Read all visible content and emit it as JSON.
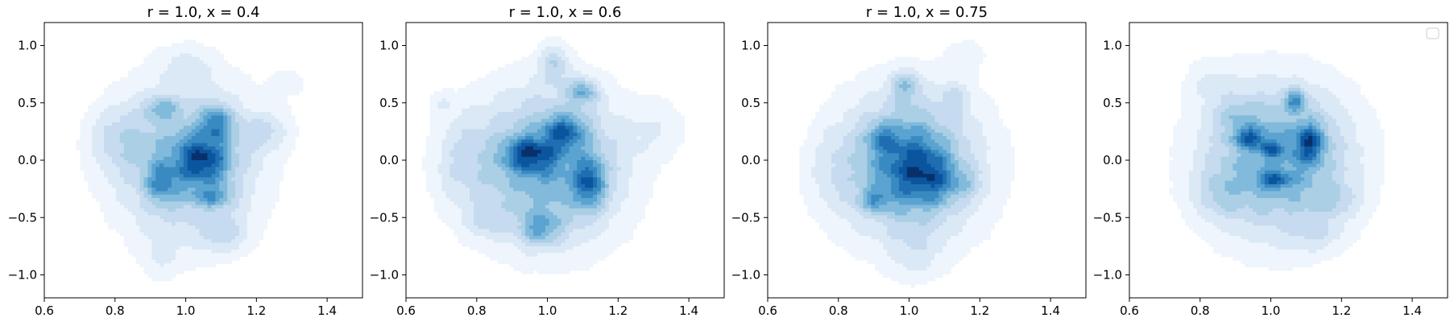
{
  "chart_data": [
    {
      "type": "heatmap",
      "title": "r = 1.0, x = 0.4",
      "xlim": [
        0.6,
        1.5
      ],
      "ylim": [
        -1.2,
        1.2
      ],
      "xticks": [
        0.6,
        0.8,
        1.0,
        1.2,
        1.4
      ],
      "xtick_labels": [
        "0.6",
        "0.8",
        "1.0",
        "1.2",
        "1.4"
      ],
      "yticks": [
        -1.0,
        -0.5,
        0.0,
        0.5,
        1.0
      ],
      "ytick_labels": [
        "−1.0",
        "−0.5",
        "0.0",
        "0.5",
        "1.0"
      ],
      "colormap": "Blues",
      "grid": false,
      "density_blobs": [
        {
          "x": 1.0,
          "y": 0.0,
          "sx": 0.15,
          "sy": 0.5,
          "w": 0.55
        },
        {
          "x": 1.05,
          "y": 0.0,
          "sx": 0.05,
          "sy": 0.15,
          "w": 0.55
        },
        {
          "x": 1.09,
          "y": 0.33,
          "sx": 0.03,
          "sy": 0.1,
          "w": 0.45
        },
        {
          "x": 0.93,
          "y": 0.45,
          "sx": 0.03,
          "sy": 0.06,
          "w": 0.3
        },
        {
          "x": 0.93,
          "y": -0.2,
          "sx": 0.03,
          "sy": 0.12,
          "w": 0.35
        },
        {
          "x": 1.08,
          "y": -0.32,
          "sx": 0.04,
          "sy": 0.06,
          "w": 0.3
        },
        {
          "x": 1.23,
          "y": 0.25,
          "sx": 0.05,
          "sy": 0.12,
          "w": 0.2
        },
        {
          "x": 0.8,
          "y": 0.2,
          "sx": 0.06,
          "sy": 0.2,
          "w": 0.18
        },
        {
          "x": 1.11,
          "y": -0.65,
          "sx": 0.05,
          "sy": 0.12,
          "w": 0.2
        },
        {
          "x": 0.93,
          "y": -0.85,
          "sx": 0.04,
          "sy": 0.15,
          "w": 0.12
        },
        {
          "x": 1.0,
          "y": 0.85,
          "sx": 0.06,
          "sy": 0.12,
          "w": 0.12
        },
        {
          "x": 1.3,
          "y": 0.7,
          "sx": 0.05,
          "sy": 0.15,
          "w": 0.1
        }
      ]
    },
    {
      "type": "heatmap",
      "title": "r = 1.0, x = 0.6",
      "xlim": [
        0.6,
        1.5
      ],
      "ylim": [
        -1.2,
        1.2
      ],
      "xticks": [
        0.6,
        0.8,
        1.0,
        1.2,
        1.4
      ],
      "xtick_labels": [
        "0.6",
        "0.8",
        "1.0",
        "1.2",
        "1.4"
      ],
      "yticks": [
        -1.0,
        -0.5,
        0.0,
        0.5,
        1.0
      ],
      "ytick_labels": [
        "−1.0",
        "−0.5",
        "0.0",
        "0.5",
        "1.0"
      ],
      "colormap": "Blues",
      "grid": false,
      "density_blobs": [
        {
          "x": 1.0,
          "y": -0.05,
          "sx": 0.16,
          "sy": 0.5,
          "w": 0.55
        },
        {
          "x": 0.95,
          "y": 0.05,
          "sx": 0.05,
          "sy": 0.1,
          "w": 0.45
        },
        {
          "x": 1.05,
          "y": 0.25,
          "sx": 0.04,
          "sy": 0.1,
          "w": 0.4
        },
        {
          "x": 1.12,
          "y": -0.2,
          "sx": 0.03,
          "sy": 0.15,
          "w": 0.45
        },
        {
          "x": 1.1,
          "y": 0.6,
          "sx": 0.03,
          "sy": 0.08,
          "w": 0.35
        },
        {
          "x": 1.02,
          "y": 0.85,
          "sx": 0.03,
          "sy": 0.12,
          "w": 0.25
        },
        {
          "x": 0.98,
          "y": -0.6,
          "sx": 0.04,
          "sy": 0.1,
          "w": 0.3
        },
        {
          "x": 0.75,
          "y": 0.0,
          "sx": 0.06,
          "sy": 0.3,
          "w": 0.15
        },
        {
          "x": 0.82,
          "y": -0.55,
          "sx": 0.04,
          "sy": 0.1,
          "w": 0.12
        },
        {
          "x": 1.32,
          "y": 0.3,
          "sx": 0.06,
          "sy": 0.2,
          "w": 0.12
        },
        {
          "x": 0.7,
          "y": 0.5,
          "sx": 0.03,
          "sy": 0.08,
          "w": 0.1
        }
      ]
    },
    {
      "type": "heatmap",
      "title": "r = 1.0, x = 0.75",
      "xlim": [
        0.6,
        1.5
      ],
      "ylim": [
        -1.2,
        1.2
      ],
      "xticks": [
        0.6,
        0.8,
        1.0,
        1.2,
        1.4
      ],
      "xtick_labels": [
        "0.6",
        "0.8",
        "1.0",
        "1.2",
        "1.4"
      ],
      "yticks": [
        -1.0,
        -0.5,
        0.0,
        0.5,
        1.0
      ],
      "ytick_labels": [
        "−1.0",
        "−0.5",
        "0.0",
        "0.5",
        "1.0"
      ],
      "colormap": "Blues",
      "grid": false,
      "density_blobs": [
        {
          "x": 1.0,
          "y": -0.05,
          "sx": 0.16,
          "sy": 0.5,
          "w": 0.65
        },
        {
          "x": 1.0,
          "y": -0.05,
          "sx": 0.07,
          "sy": 0.25,
          "w": 0.45
        },
        {
          "x": 0.92,
          "y": 0.2,
          "sx": 0.03,
          "sy": 0.08,
          "w": 0.3
        },
        {
          "x": 0.9,
          "y": -0.35,
          "sx": 0.03,
          "sy": 0.06,
          "w": 0.35
        },
        {
          "x": 1.07,
          "y": -0.15,
          "sx": 0.04,
          "sy": 0.15,
          "w": 0.3
        },
        {
          "x": 0.99,
          "y": 0.65,
          "sx": 0.03,
          "sy": 0.1,
          "w": 0.35
        },
        {
          "x": 1.13,
          "y": 0.55,
          "sx": 0.03,
          "sy": 0.1,
          "w": 0.2
        },
        {
          "x": 1.15,
          "y": -0.2,
          "sx": 0.04,
          "sy": 0.1,
          "w": 0.2
        },
        {
          "x": 1.02,
          "y": -0.85,
          "sx": 0.05,
          "sy": 0.15,
          "w": 0.15
        },
        {
          "x": 1.17,
          "y": 0.95,
          "sx": 0.05,
          "sy": 0.12,
          "w": 0.12
        },
        {
          "x": 0.78,
          "y": -0.1,
          "sx": 0.05,
          "sy": 0.25,
          "w": 0.12
        }
      ]
    },
    {
      "type": "heatmap",
      "title": "",
      "xlim": [
        0.6,
        1.5
      ],
      "ylim": [
        -1.2,
        1.2
      ],
      "xticks": [
        0.6,
        0.8,
        1.0,
        1.2,
        1.4
      ],
      "xtick_labels": [
        "0.6",
        "0.8",
        "1.0",
        "1.2",
        "1.4"
      ],
      "yticks": [
        -1.0,
        -0.5,
        0.0,
        0.5,
        1.0
      ],
      "ytick_labels": [
        "−1.0",
        "−0.5",
        "0.0",
        "0.5",
        "1.0"
      ],
      "colormap": "Blues",
      "grid": false,
      "legend": "top-right",
      "density_blobs": [
        {
          "x": 1.02,
          "y": 0.0,
          "sx": 0.16,
          "sy": 0.5,
          "w": 0.55
        },
        {
          "x": 0.94,
          "y": 0.2,
          "sx": 0.03,
          "sy": 0.06,
          "w": 0.4
        },
        {
          "x": 1.11,
          "y": 0.15,
          "sx": 0.03,
          "sy": 0.12,
          "w": 0.45
        },
        {
          "x": 1.07,
          "y": 0.52,
          "sx": 0.02,
          "sy": 0.06,
          "w": 0.4
        },
        {
          "x": 1.0,
          "y": 0.1,
          "sx": 0.02,
          "sy": 0.05,
          "w": 0.3
        },
        {
          "x": 1.01,
          "y": -0.18,
          "sx": 0.03,
          "sy": 0.05,
          "w": 0.35
        },
        {
          "x": 1.18,
          "y": -0.35,
          "sx": 0.05,
          "sy": 0.1,
          "w": 0.15
        },
        {
          "x": 0.85,
          "y": -0.3,
          "sx": 0.05,
          "sy": 0.15,
          "w": 0.15
        },
        {
          "x": 0.9,
          "y": 0.4,
          "sx": 0.04,
          "sy": 0.1,
          "w": 0.15
        },
        {
          "x": 1.13,
          "y": -0.65,
          "sx": 0.05,
          "sy": 0.1,
          "w": 0.12
        },
        {
          "x": 0.82,
          "y": 0.7,
          "sx": 0.05,
          "sy": 0.15,
          "w": 0.1
        }
      ]
    }
  ],
  "colors": {
    "cmap_low": "#f7fbff",
    "cmap_high": "#08306b"
  }
}
